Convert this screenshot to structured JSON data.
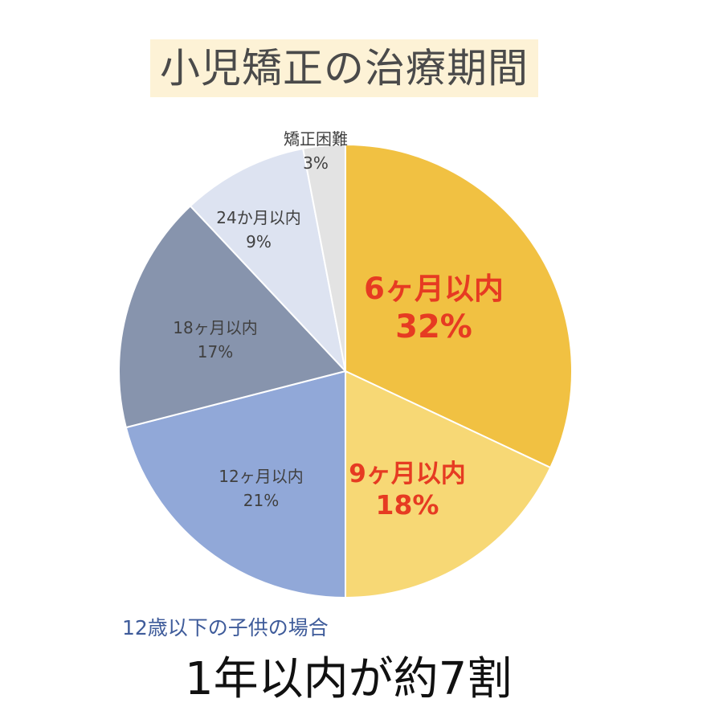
{
  "title": "小児矯正の治療期間",
  "subtitle": "12歳以下の子供の場合",
  "headline": "1年以内が約7割",
  "chart_data": {
    "type": "pie",
    "title": "小児矯正の治療期間",
    "start": "top",
    "direction": "clockwise",
    "slices": [
      {
        "label": "6ヶ月以内",
        "value": 32,
        "value_label": "32%",
        "color": "#F1C142",
        "text_color": "#E63B22",
        "emphasis": true
      },
      {
        "label": "9ヶ月以内",
        "value": 18,
        "value_label": "18%",
        "color": "#F7D875",
        "text_color": "#E63B22",
        "emphasis": true
      },
      {
        "label": "12ヶ月以内",
        "value": 21,
        "value_label": "21%",
        "color": "#91A8D8",
        "text_color": "#404040",
        "emphasis": false
      },
      {
        "label": "18ヶ月以内",
        "value": 17,
        "value_label": "17%",
        "color": "#8794AD",
        "text_color": "#404040",
        "emphasis": false
      },
      {
        "label": "24か月以内",
        "value": 9,
        "value_label": "9%",
        "color": "#DDE3F1",
        "text_color": "#404040",
        "emphasis": false
      },
      {
        "label": "矯正困難",
        "value": 3,
        "value_label": "3%",
        "color": "#E3E3E3",
        "text_color": "#404040",
        "emphasis": false
      }
    ]
  }
}
